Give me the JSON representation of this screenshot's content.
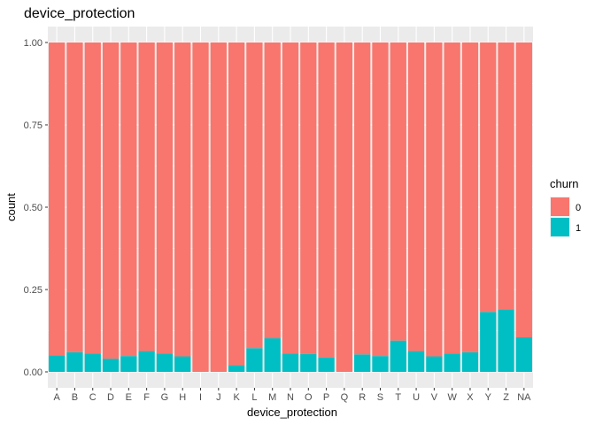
{
  "chart_data": {
    "type": "bar",
    "stacked": true,
    "title": "device_protection",
    "xlabel": "device_protection",
    "ylabel": "count",
    "ylim": [
      0,
      1
    ],
    "yticks": [
      "0.00",
      "0.25",
      "0.50",
      "0.75",
      "1.00"
    ],
    "categories": [
      "A",
      "B",
      "C",
      "D",
      "E",
      "F",
      "G",
      "H",
      "I",
      "J",
      "K",
      "L",
      "M",
      "N",
      "O",
      "P",
      "Q",
      "R",
      "S",
      "T",
      "U",
      "V",
      "W",
      "X",
      "Y",
      "Z",
      "NA"
    ],
    "legend": {
      "title": "churn",
      "position": "right"
    },
    "series": [
      {
        "name": "0",
        "color": "#F8766D",
        "values": [
          0.95,
          0.94,
          0.945,
          0.96,
          0.952,
          0.937,
          0.945,
          0.953,
          1.0,
          1.0,
          0.98,
          0.928,
          0.898,
          0.945,
          0.946,
          0.956,
          1.0,
          0.947,
          0.952,
          0.905,
          0.937,
          0.953,
          0.944,
          0.94,
          0.818,
          0.81,
          0.895
        ]
      },
      {
        "name": "1",
        "color": "#00BFC4",
        "values": [
          0.05,
          0.06,
          0.055,
          0.04,
          0.048,
          0.063,
          0.055,
          0.047,
          0.0,
          0.0,
          0.02,
          0.072,
          0.102,
          0.055,
          0.054,
          0.044,
          0.0,
          0.053,
          0.048,
          0.095,
          0.063,
          0.047,
          0.056,
          0.06,
          0.182,
          0.19,
          0.105
        ]
      }
    ],
    "grid": true,
    "panel_background": "#EBEBEB"
  }
}
